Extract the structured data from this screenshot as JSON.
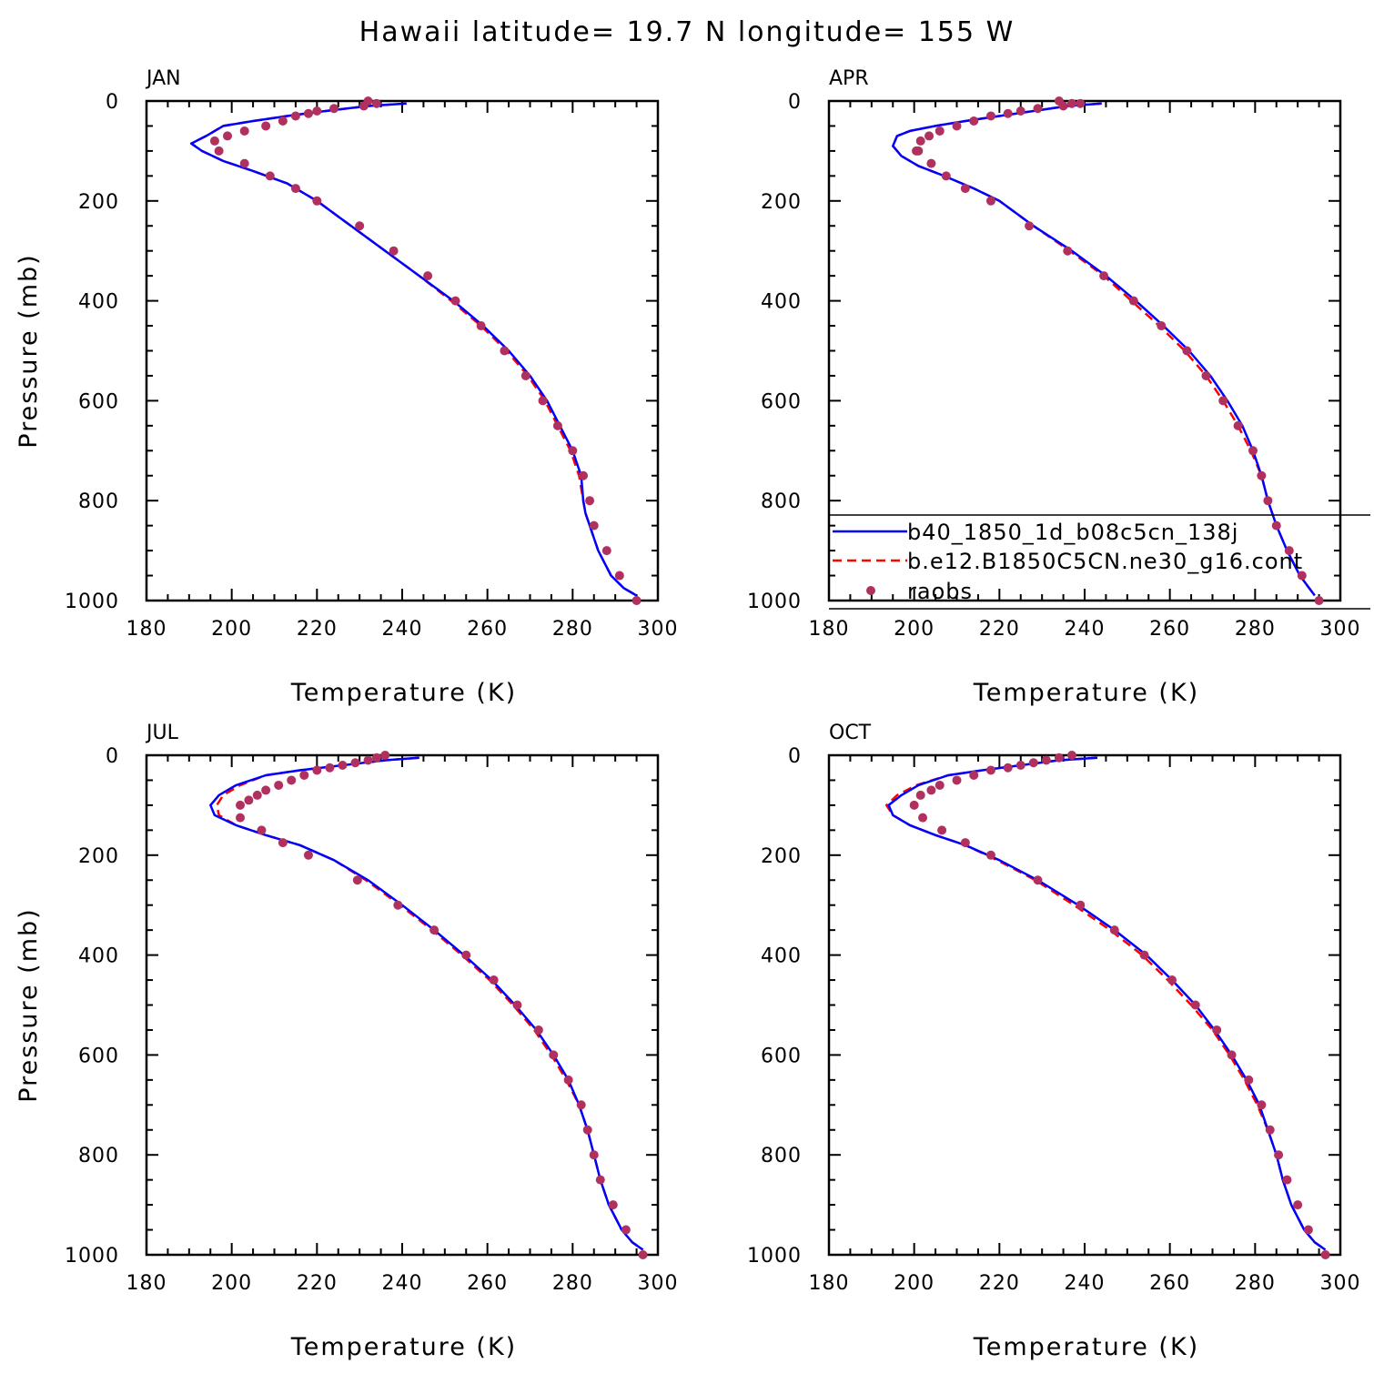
{
  "title": "Hawaii  latitude= 19.7 N longitude= 155 W",
  "colors": {
    "model1": "#0000ff",
    "model2": "#ff0000",
    "raobs": "#b03060",
    "axis": "#000000"
  },
  "legend": {
    "placement": "lower-right of APR panel",
    "entries": [
      {
        "label": "b40_1850_1d_b08c5cn_138j",
        "style": "solid-line",
        "color": "#0000ff"
      },
      {
        "label": "b.e12.B1850C5CN.ne30_g16.cont",
        "style": "dashed-line",
        "color": "#ff0000"
      },
      {
        "label": "raobs",
        "style": "dot",
        "color": "#b03060"
      }
    ]
  },
  "chart_data": [
    {
      "type": "line",
      "panel": "JAN",
      "xlabel": "Temperature (K)",
      "ylabel": "Pressure (mb)",
      "xlim": [
        180,
        300
      ],
      "ylim": [
        1000,
        0
      ],
      "y_inverted": true,
      "x_ticks": [
        180,
        200,
        220,
        240,
        260,
        280,
        300
      ],
      "y_ticks": [
        0,
        200,
        400,
        600,
        800,
        1000
      ],
      "series": [
        {
          "name": "b40_1850_1d_b08c5cn_138j",
          "style": "solid",
          "color": "#0000ff",
          "x": [
            241,
            232,
            222,
            213,
            205,
            198,
            194,
            190.5,
            193,
            198,
            205,
            213,
            220,
            228,
            236,
            244,
            252,
            259,
            265,
            270,
            274,
            277,
            280,
            282,
            282.5,
            283,
            284,
            286,
            289,
            292,
            295
          ],
          "y": [
            5,
            10,
            20,
            30,
            40,
            50,
            70,
            85,
            100,
            120,
            140,
            165,
            200,
            250,
            300,
            350,
            400,
            450,
            500,
            550,
            600,
            650,
            700,
            750,
            800,
            825,
            850,
            900,
            950,
            975,
            990
          ]
        },
        {
          "name": "b.e12.B1850C5CN.ne30_g16.cont",
          "style": "dashed",
          "color": "#ff0000",
          "x": [
            241,
            232,
            222,
            213,
            205,
            198,
            194,
            190.5,
            193,
            198,
            205,
            213,
            220,
            228,
            236,
            244,
            251.5,
            258.5,
            264.5,
            269.5,
            273.5,
            276.5,
            279.5,
            281.5,
            282.5,
            283,
            284,
            286,
            289,
            292,
            295
          ],
          "y": [
            5,
            10,
            20,
            30,
            40,
            50,
            70,
            85,
            100,
            120,
            140,
            165,
            200,
            250,
            300,
            350,
            400,
            450,
            500,
            550,
            600,
            650,
            700,
            750,
            800,
            825,
            850,
            900,
            950,
            975,
            990
          ]
        },
        {
          "name": "raobs",
          "style": "dots",
          "color": "#b03060",
          "x": [
            232,
            234,
            231,
            224,
            220,
            218,
            215,
            212,
            208,
            203,
            199,
            196,
            197,
            203,
            209,
            215,
            220,
            230,
            238,
            246,
            252.5,
            258.5,
            264,
            269,
            273,
            276.5,
            280,
            282.5,
            284,
            285,
            288,
            291,
            295
          ],
          "y": [
            0,
            5,
            10,
            15,
            20,
            25,
            30,
            40,
            50,
            60,
            70,
            80,
            100,
            125,
            150,
            175,
            200,
            250,
            300,
            350,
            400,
            450,
            500,
            550,
            600,
            650,
            700,
            750,
            800,
            850,
            900,
            950,
            1000
          ]
        }
      ]
    },
    {
      "type": "line",
      "panel": "APR",
      "xlabel": "Temperature (K)",
      "ylabel": "",
      "xlim": [
        180,
        300
      ],
      "ylim": [
        1000,
        0
      ],
      "y_inverted": true,
      "x_ticks": [
        180,
        200,
        220,
        240,
        260,
        280,
        300
      ],
      "y_ticks": [
        0,
        200,
        400,
        600,
        800,
        1000
      ],
      "series": [
        {
          "name": "b40_1850_1d_b08c5cn_138j",
          "style": "solid",
          "color": "#0000ff",
          "x": [
            244,
            236,
            228,
            220,
            212,
            205,
            199,
            196,
            195,
            197,
            201,
            207,
            214,
            220,
            228,
            237,
            245,
            252,
            258.5,
            264.5,
            269.5,
            273.5,
            277,
            279.5,
            281.5,
            283,
            285,
            287.5,
            290.5,
            294
          ],
          "y": [
            5,
            10,
            20,
            30,
            40,
            50,
            60,
            70,
            90,
            110,
            130,
            150,
            175,
            200,
            250,
            300,
            350,
            400,
            450,
            500,
            550,
            600,
            650,
            700,
            750,
            800,
            850,
            900,
            950,
            990
          ]
        },
        {
          "name": "b.e12.B1850C5CN.ne30_g16.cont",
          "style": "dashed",
          "color": "#ff0000",
          "x": [
            244,
            236,
            228,
            220,
            212,
            205,
            199,
            196,
            195,
            197,
            201,
            207,
            214,
            220,
            228,
            236.5,
            244.5,
            251,
            257.5,
            263.5,
            268.5,
            272.5,
            276,
            279,
            281.5,
            283,
            285,
            287.5,
            290.5,
            294
          ],
          "y": [
            5,
            10,
            20,
            30,
            40,
            50,
            60,
            70,
            90,
            110,
            130,
            150,
            175,
            200,
            250,
            300,
            350,
            400,
            450,
            500,
            550,
            600,
            650,
            700,
            750,
            800,
            850,
            900,
            950,
            990
          ]
        },
        {
          "name": "raobs",
          "style": "dots",
          "color": "#b03060",
          "x": [
            234,
            237,
            239,
            235,
            229,
            225,
            222,
            218,
            214,
            210,
            206,
            203.5,
            201.5,
            201,
            200.5,
            204,
            207.5,
            212,
            218,
            227,
            236,
            244.5,
            251.5,
            258,
            264,
            268.5,
            272.5,
            276,
            279.5,
            281.5,
            283,
            285,
            288,
            291,
            295
          ],
          "y": [
            0,
            5,
            5,
            10,
            15,
            20,
            25,
            30,
            40,
            50,
            60,
            70,
            80,
            100,
            100,
            125,
            150,
            175,
            200,
            250,
            300,
            350,
            400,
            450,
            500,
            550,
            600,
            650,
            700,
            750,
            800,
            850,
            900,
            950,
            1000
          ]
        }
      ]
    },
    {
      "type": "line",
      "panel": "JUL",
      "xlabel": "Temperature (K)",
      "ylabel": "Pressure (mb)",
      "xlim": [
        180,
        300
      ],
      "ylim": [
        1000,
        0
      ],
      "y_inverted": true,
      "x_ticks": [
        180,
        200,
        220,
        240,
        260,
        280,
        300
      ],
      "y_ticks": [
        0,
        200,
        400,
        600,
        800,
        1000
      ],
      "series": [
        {
          "name": "b40_1850_1d_b08c5cn_138j",
          "style": "solid",
          "color": "#0000ff",
          "x": [
            244,
            236,
            226,
            216,
            208,
            201,
            197,
            195,
            196,
            201,
            208,
            216,
            224,
            232,
            240,
            247.5,
            254.5,
            261,
            266.5,
            271.5,
            275.5,
            279,
            281.5,
            283.5,
            285,
            286.5,
            288.5,
            291.5,
            294,
            296.5
          ],
          "y": [
            5,
            10,
            20,
            30,
            40,
            60,
            80,
            100,
            120,
            140,
            160,
            180,
            210,
            250,
            300,
            350,
            400,
            450,
            500,
            550,
            600,
            650,
            700,
            750,
            800,
            850,
            900,
            950,
            975,
            990
          ]
        },
        {
          "name": "b.e12.B1850C5CN.ne30_g16.cont",
          "style": "dashed",
          "color": "#ff0000",
          "x": [
            244,
            236,
            226,
            216,
            208,
            202,
            198,
            196.5,
            197,
            201,
            208,
            216,
            224,
            231.5,
            239.5,
            247,
            254,
            260.5,
            266,
            271,
            275,
            278.5,
            281.5,
            283.5,
            285,
            286.5,
            288.5,
            291.5,
            294,
            296.5
          ],
          "y": [
            5,
            10,
            20,
            30,
            40,
            60,
            80,
            100,
            120,
            140,
            160,
            180,
            210,
            250,
            300,
            350,
            400,
            450,
            500,
            550,
            600,
            650,
            700,
            750,
            800,
            850,
            900,
            950,
            975,
            990
          ]
        },
        {
          "name": "raobs",
          "style": "dots",
          "color": "#b03060",
          "x": [
            236,
            234,
            232,
            229,
            226,
            223,
            220,
            217,
            214,
            211,
            208,
            206,
            204,
            202,
            202,
            207,
            212,
            218,
            229.5,
            239,
            247.5,
            255,
            261.5,
            267,
            272,
            275.5,
            279,
            282,
            283.5,
            285,
            286.5,
            289.5,
            292.5,
            296.5
          ],
          "y": [
            0,
            5,
            10,
            15,
            20,
            25,
            30,
            40,
            50,
            60,
            70,
            80,
            90,
            100,
            125,
            150,
            175,
            200,
            250,
            300,
            350,
            400,
            450,
            500,
            550,
            600,
            650,
            700,
            750,
            800,
            850,
            900,
            950,
            1000
          ]
        }
      ]
    },
    {
      "type": "line",
      "panel": "OCT",
      "xlabel": "Temperature (K)",
      "ylabel": "",
      "xlim": [
        180,
        300
      ],
      "ylim": [
        1000,
        0
      ],
      "y_inverted": true,
      "x_ticks": [
        180,
        200,
        220,
        240,
        260,
        280,
        300
      ],
      "y_ticks": [
        0,
        200,
        400,
        600,
        800,
        1000
      ],
      "series": [
        {
          "name": "b40_1850_1d_b08c5cn_138j",
          "style": "solid",
          "color": "#0000ff",
          "x": [
            243,
            234,
            225,
            216,
            208,
            201,
            197,
            194,
            195,
            199,
            205,
            212,
            220,
            229,
            238.5,
            247,
            254.5,
            260.5,
            266,
            270.5,
            274.5,
            278,
            281,
            283,
            285,
            286.5,
            288.5,
            291.5,
            294,
            296.5
          ],
          "y": [
            5,
            10,
            20,
            30,
            40,
            60,
            80,
            100,
            120,
            140,
            160,
            180,
            210,
            250,
            300,
            350,
            400,
            450,
            500,
            550,
            600,
            650,
            700,
            750,
            800,
            850,
            900,
            950,
            975,
            990
          ]
        },
        {
          "name": "b.e12.B1850C5CN.ne30_g16.cont",
          "style": "dashed",
          "color": "#ff0000",
          "x": [
            243,
            234,
            225,
            216,
            208,
            200.5,
            196,
            193.5,
            195,
            199,
            205,
            212,
            219.5,
            228.5,
            237.5,
            246,
            253.5,
            259.5,
            265,
            270,
            274,
            277.5,
            280.5,
            283,
            285,
            286.5,
            288.5,
            291.5,
            294,
            296.5
          ],
          "y": [
            5,
            10,
            20,
            30,
            40,
            60,
            80,
            100,
            120,
            140,
            160,
            180,
            210,
            250,
            300,
            350,
            400,
            450,
            500,
            550,
            600,
            650,
            700,
            750,
            800,
            850,
            900,
            950,
            975,
            990
          ]
        },
        {
          "name": "raobs",
          "style": "dots",
          "color": "#b03060",
          "x": [
            237,
            234,
            231,
            228,
            225,
            222,
            218,
            214,
            210,
            206,
            204,
            201.5,
            200,
            202,
            206.5,
            212,
            218,
            229,
            239,
            247,
            254,
            260.5,
            266,
            271,
            274.5,
            278.5,
            281.5,
            283.5,
            285.5,
            287.5,
            290,
            292.5,
            296.5
          ],
          "y": [
            0,
            5,
            10,
            15,
            20,
            25,
            30,
            40,
            50,
            60,
            70,
            80,
            100,
            125,
            150,
            175,
            200,
            250,
            300,
            350,
            400,
            450,
            500,
            550,
            600,
            650,
            700,
            750,
            800,
            850,
            900,
            950,
            1000
          ]
        }
      ]
    }
  ]
}
